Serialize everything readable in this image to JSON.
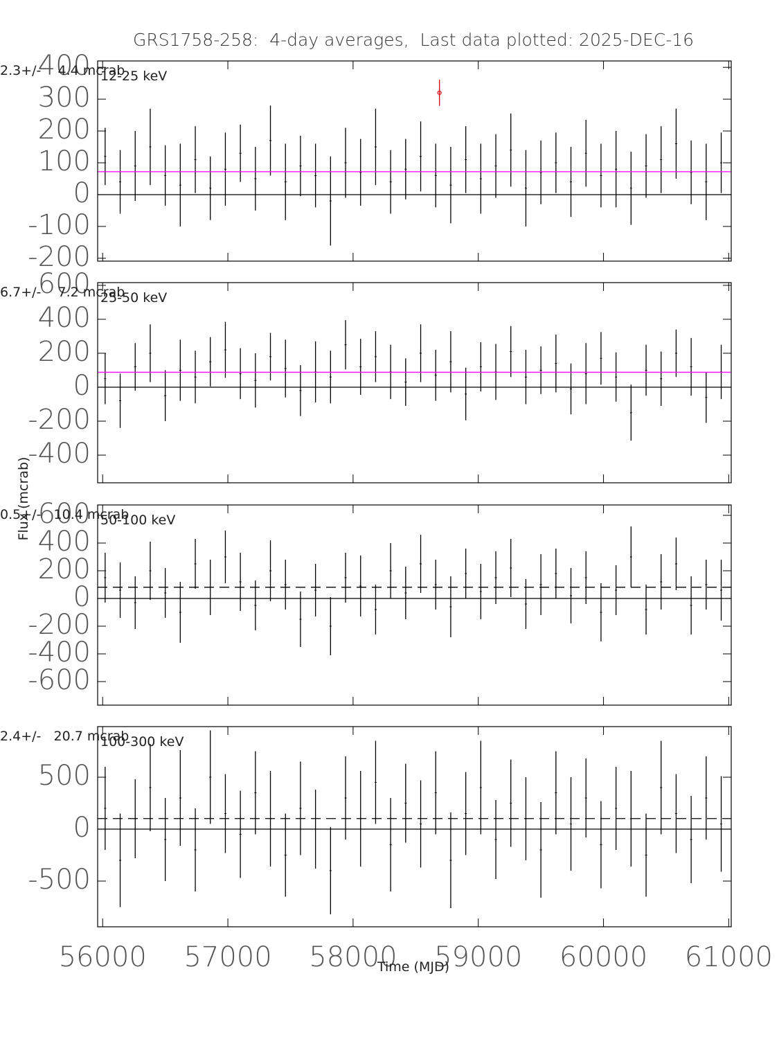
{
  "chart_data": [
    {
      "type": "errorbar",
      "title": "GRS1758-258:  4-day averages,  Last data plotted: 2025-DEC-16",
      "label": "12-25 keV",
      "annotation": "2.3+/-    4.4 mcrab",
      "x": [
        56020,
        56140,
        56260,
        56380,
        56500,
        56620,
        56740,
        56860,
        56980,
        57100,
        57220,
        57340,
        57460,
        57580,
        57700,
        57820,
        57940,
        58060,
        58180,
        58300,
        58420,
        58540,
        58660,
        58780,
        58900,
        59020,
        59140,
        59260,
        59380,
        59500,
        59620,
        59740,
        59860,
        59980,
        60100,
        60220,
        60340,
        60460,
        60580,
        60700,
        60820,
        60940
      ],
      "series": [
        {
          "color": "#000000",
          "values": [
            120,
            40,
            90,
            150,
            60,
            30,
            110,
            20,
            80,
            130,
            50,
            170,
            40,
            90,
            60,
            -20,
            100,
            70,
            150,
            40,
            80,
            120,
            60,
            30,
            110,
            50,
            90,
            140,
            20,
            70,
            100,
            40,
            130,
            60,
            80,
            20,
            90,
            110,
            160,
            70,
            40,
            100
          ],
          "errors": [
            90,
            100,
            110,
            120,
            95,
            130,
            105,
            100,
            115,
            90,
            100,
            110,
            120,
            95,
            100,
            140,
            110,
            105,
            120,
            100,
            95,
            110,
            100,
            120,
            105,
            110,
            100,
            115,
            120,
            100,
            95,
            110,
            105,
            100,
            120,
            115,
            100,
            105,
            110,
            100,
            120,
            95
          ]
        },
        {
          "color": "#dd0000",
          "x": [
            58690
          ],
          "values": [
            320
          ],
          "errors": [
            41
          ]
        }
      ],
      "mean_line": {
        "value": 72,
        "color": "#ff00ff",
        "style": "solid"
      },
      "xlim": [
        55960,
        61020
      ],
      "xticks": [
        56000,
        57000,
        58000,
        59000,
        60000,
        61000
      ],
      "ylim": [
        -209,
        420
      ],
      "yticks": [
        -200,
        -100,
        0,
        100,
        200,
        300,
        400
      ]
    },
    {
      "type": "errorbar",
      "label": "25-50 keV",
      "annotation": "6.7+/-    7.2 mcrab",
      "ylabel": "Flux (mcrab)",
      "x": [
        56020,
        56140,
        56260,
        56380,
        56500,
        56620,
        56740,
        56860,
        56980,
        57100,
        57220,
        57340,
        57460,
        57580,
        57700,
        57820,
        57940,
        58060,
        58180,
        58300,
        58420,
        58540,
        58660,
        58780,
        58900,
        59020,
        59140,
        59260,
        59380,
        59500,
        59620,
        59740,
        59860,
        59980,
        60100,
        60220,
        60340,
        60460,
        60580,
        60700,
        60820,
        60940
      ],
      "series": [
        {
          "color": "#000000",
          "values": [
            50,
            -80,
            120,
            200,
            -50,
            100,
            60,
            150,
            220,
            80,
            40,
            180,
            110,
            -20,
            90,
            60,
            250,
            120,
            180,
            90,
            30,
            200,
            70,
            150,
            -40,
            120,
            90,
            210,
            60,
            100,
            140,
            -10,
            80,
            170,
            60,
            -150,
            100,
            50,
            200,
            120,
            -60,
            90
          ],
          "errors": [
            150,
            160,
            140,
            170,
            150,
            180,
            155,
            145,
            165,
            150,
            160,
            140,
            170,
            150,
            180,
            155,
            145,
            165,
            150,
            160,
            140,
            170,
            150,
            180,
            155,
            145,
            165,
            150,
            160,
            140,
            170,
            150,
            180,
            155,
            145,
            165,
            150,
            160,
            140,
            170,
            150,
            160
          ]
        }
      ],
      "mean_line": {
        "value": 88,
        "color": "#ff00ff",
        "style": "solid"
      },
      "xlim": [
        55960,
        61020
      ],
      "xticks": [
        56000,
        57000,
        58000,
        59000,
        60000,
        61000
      ],
      "ylim": [
        -563,
        616
      ],
      "yticks": [
        -400,
        -200,
        0,
        200,
        400,
        600
      ]
    },
    {
      "type": "errorbar",
      "label": "50-100 keV",
      "annotation": "0.5+/-   10.4 mcrab",
      "x": [
        56020,
        56140,
        56260,
        56380,
        56500,
        56620,
        56740,
        56860,
        56980,
        57100,
        57220,
        57340,
        57460,
        57580,
        57700,
        57820,
        57940,
        58060,
        58180,
        58300,
        58420,
        58540,
        58660,
        58780,
        58900,
        59020,
        59140,
        59260,
        59380,
        59500,
        59620,
        59740,
        59860,
        59980,
        60100,
        60220,
        60340,
        60460,
        60580,
        60700,
        60820,
        60940
      ],
      "series": [
        {
          "color": "#000000",
          "values": [
            150,
            60,
            -30,
            200,
            40,
            -100,
            250,
            80,
            300,
            120,
            -50,
            200,
            100,
            -150,
            60,
            -200,
            150,
            90,
            -80,
            200,
            40,
            250,
            100,
            -60,
            180,
            50,
            150,
            220,
            -40,
            100,
            180,
            20,
            150,
            -100,
            60,
            300,
            -80,
            120,
            250,
            -50,
            100,
            60
          ],
          "errors": [
            180,
            200,
            190,
            210,
            180,
            220,
            180,
            200,
            190,
            210,
            180,
            220,
            180,
            200,
            190,
            210,
            180,
            220,
            180,
            200,
            190,
            210,
            180,
            220,
            180,
            200,
            190,
            210,
            180,
            220,
            180,
            200,
            190,
            210,
            180,
            220,
            180,
            200,
            190,
            210,
            180,
            220
          ]
        }
      ],
      "mean_line": {
        "value": 81,
        "color": "#000000",
        "style": "dashed"
      },
      "xlim": [
        55960,
        61020
      ],
      "xticks": [
        56000,
        57000,
        58000,
        59000,
        60000,
        61000
      ],
      "ylim": [
        -770,
        675
      ],
      "yticks": [
        -600,
        -400,
        -200,
        0,
        200,
        400,
        600
      ]
    },
    {
      "type": "errorbar",
      "label": "100-300 keV",
      "annotation": "2.4+/-   20.7 mcrab",
      "xlabel": "Time (MJD)",
      "x": [
        56020,
        56140,
        56260,
        56380,
        56500,
        56620,
        56740,
        56860,
        56980,
        57100,
        57220,
        57340,
        57460,
        57580,
        57700,
        57820,
        57940,
        58060,
        58180,
        58300,
        58420,
        58540,
        58660,
        58780,
        58900,
        59020,
        59140,
        59260,
        59380,
        59500,
        59620,
        59740,
        59860,
        59980,
        60100,
        60220,
        60340,
        60460,
        60580,
        60700,
        60820,
        60940
      ],
      "series": [
        {
          "color": "#000000",
          "values": [
            200,
            -300,
            100,
            400,
            -100,
            300,
            -200,
            500,
            150,
            -50,
            350,
            100,
            -250,
            200,
            0,
            -400,
            300,
            100,
            450,
            -150,
            250,
            50,
            350,
            -300,
            150,
            400,
            -100,
            250,
            100,
            -200,
            350,
            50,
            300,
            -150,
            200,
            100,
            -250,
            400,
            150,
            -100,
            300,
            50
          ],
          "errors": [
            400,
            450,
            380,
            420,
            400,
            460,
            400,
            450,
            380,
            420,
            400,
            460,
            400,
            450,
            380,
            420,
            400,
            460,
            400,
            450,
            380,
            420,
            400,
            460,
            400,
            450,
            380,
            420,
            400,
            460,
            400,
            450,
            380,
            420,
            400,
            460,
            400,
            450,
            380,
            420,
            400,
            460
          ]
        }
      ],
      "mean_line": {
        "value": 102,
        "color": "#000000",
        "style": "dashed"
      },
      "xlim": [
        55960,
        61020
      ],
      "xticks": [
        56000,
        57000,
        58000,
        59000,
        60000,
        61000
      ],
      "ylim": [
        -940,
        987
      ],
      "yticks": [
        -500,
        0,
        500
      ]
    }
  ]
}
